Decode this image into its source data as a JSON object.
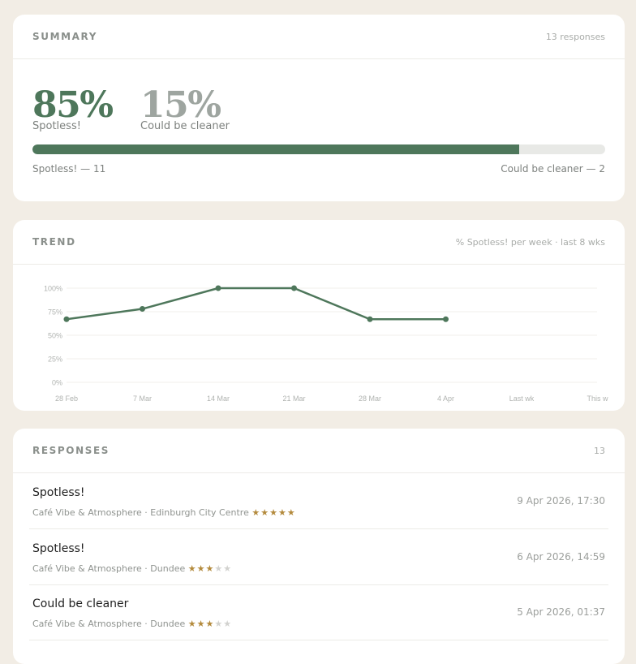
{
  "summary": {
    "title": "SUMMARY",
    "responses_meta": "13 responses",
    "spotless_pct": "85%",
    "spotless_label": "Spotless!",
    "cleaner_pct": "15%",
    "cleaner_label": "Could be cleaner",
    "spotless_fraction": 0.85,
    "spotless_caption": "Spotless! — 11",
    "cleaner_caption": "Could be cleaner — 2",
    "colors": {
      "spotless": "#4e775b",
      "cleaner": "#9ea5a0",
      "track": "#e8e9e6"
    }
  },
  "trend": {
    "title": "TREND",
    "meta": "% Spotless! per week · last 8 wks",
    "chart_data": {
      "type": "line",
      "categories": [
        "28 Feb",
        "7 Mar",
        "14 Mar",
        "21 Mar",
        "28 Mar",
        "4 Apr",
        "Last wk",
        "This w"
      ],
      "values": [
        67,
        78,
        100,
        100,
        67,
        67,
        null,
        null
      ],
      "y_ticks": [
        "100%",
        "75%",
        "50%",
        "25%",
        "0%"
      ],
      "ylim": [
        0,
        100
      ],
      "grid": true,
      "color": "#4e775b"
    }
  },
  "responses": {
    "title": "RESPONSES",
    "count": "13",
    "items": [
      {
        "title": "Spotless!",
        "subtitle": "Café Vibe & Atmosphere · Edinburgh City Centre",
        "rating": 5,
        "date": "9 Apr 2026, 17:30"
      },
      {
        "title": "Spotless!",
        "subtitle": "Café Vibe & Atmosphere · Dundee",
        "rating": 3,
        "date": "6 Apr 2026, 14:59"
      },
      {
        "title": "Could be cleaner",
        "subtitle": "Café Vibe & Atmosphere · Dundee",
        "rating": 3,
        "date": "5 Apr 2026, 01:37"
      }
    ]
  }
}
